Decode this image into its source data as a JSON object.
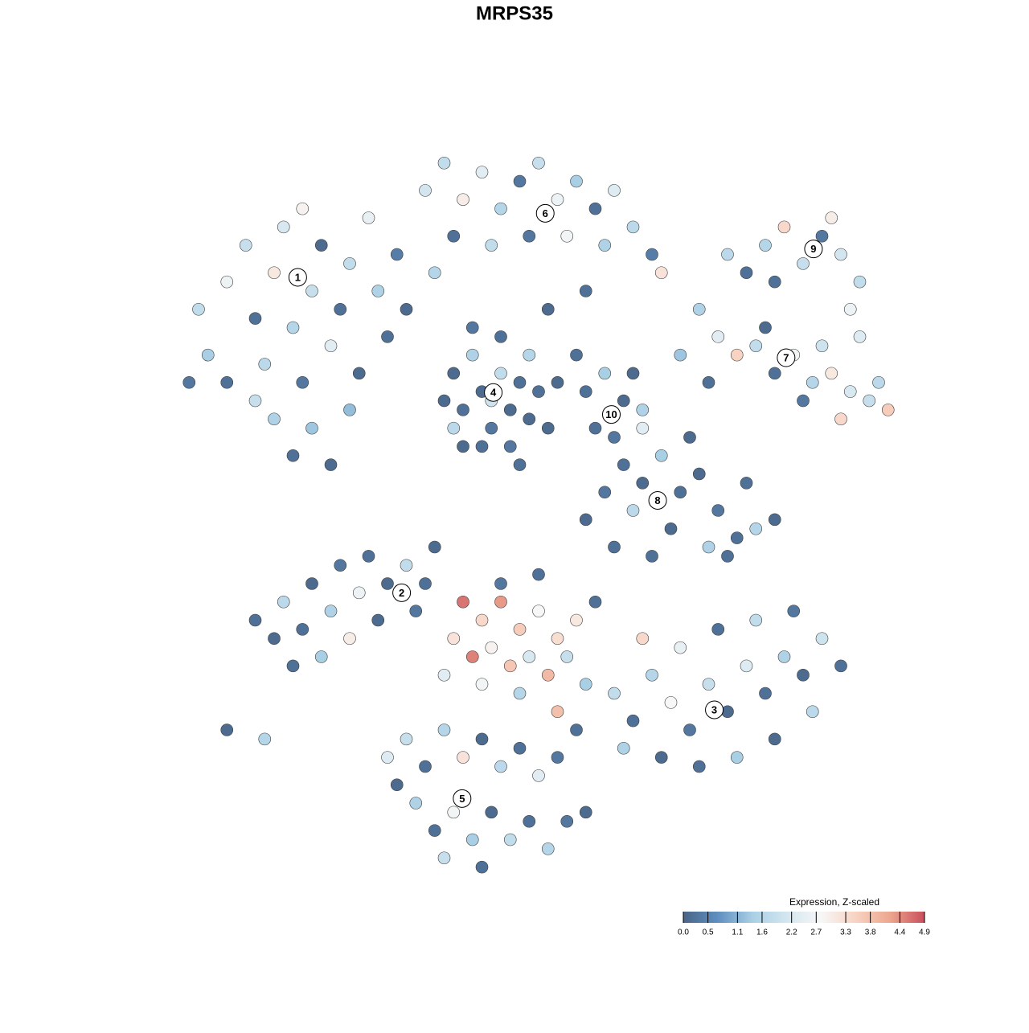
{
  "chart_data": {
    "type": "scatter",
    "title": "MRPS35",
    "xlim": [
      -40,
      40
    ],
    "ylim": [
      -40,
      40
    ],
    "x": [
      -36,
      -35,
      -33,
      -31,
      -30,
      -29,
      -28,
      -27,
      -26,
      -25,
      -24,
      -23,
      -22,
      -21,
      -20,
      -19,
      -18,
      -17,
      -16,
      -15,
      -14,
      -28,
      -26,
      -24,
      -22,
      -30,
      -33,
      -20,
      -37,
      -25,
      -12,
      -10,
      -8,
      -6,
      -4,
      -2,
      0,
      2,
      4,
      6,
      8,
      10,
      12,
      -9,
      -5,
      -1,
      3,
      7,
      13,
      5,
      1,
      -11,
      -9,
      -8,
      -7,
      -6,
      -5,
      -4,
      -3,
      -2,
      -1,
      -6,
      -8,
      -3,
      0,
      -10,
      -7,
      -4,
      -1,
      1,
      -9,
      -5,
      -2,
      2,
      5,
      7,
      9,
      6,
      8,
      10,
      4,
      11,
      22,
      24,
      26,
      28,
      30,
      32,
      34,
      33,
      31,
      20,
      25,
      34,
      17,
      19,
      21,
      23,
      25,
      27,
      29,
      31,
      33,
      35,
      37,
      32,
      28,
      24,
      15,
      18,
      30,
      36,
      9,
      11,
      13,
      15,
      17,
      19,
      21,
      23,
      25,
      20,
      18,
      14,
      10,
      12,
      16,
      22,
      11,
      7,
      5,
      8,
      -28,
      -27,
      -25,
      -24,
      -22,
      -21,
      -19,
      -18,
      -16,
      -14,
      -12,
      -11,
      -26,
      -23,
      -20,
      -17,
      -30,
      -13,
      -33,
      -29,
      -8,
      -6,
      -4,
      -2,
      0,
      2,
      -7,
      -5,
      -3,
      -1,
      1,
      3,
      -9,
      -6,
      -2,
      4,
      6,
      5,
      -10,
      -4,
      0,
      2,
      8,
      10,
      12,
      14,
      16,
      18,
      20,
      22,
      24,
      26,
      28,
      30,
      32,
      29,
      25,
      21,
      17,
      13,
      11,
      19,
      23,
      27,
      9,
      15,
      -14,
      -12,
      -10,
      -8,
      -6,
      -4,
      -2,
      0,
      2,
      -13,
      -11,
      -9,
      -7,
      -5,
      -3,
      -1,
      1,
      3,
      5,
      -6,
      -10,
      -15,
      4,
      -16
    ],
    "y": [
      22,
      17,
      25,
      29,
      21,
      16,
      26,
      31,
      20,
      14,
      24,
      29,
      18,
      22,
      27,
      15,
      32,
      24,
      19,
      28,
      22,
      10,
      6,
      9,
      5,
      12,
      14,
      11,
      14,
      33,
      35,
      38,
      34,
      37,
      33,
      36,
      38,
      34,
      36,
      33,
      35,
      31,
      28,
      30,
      29,
      30,
      30,
      29,
      26,
      24,
      22,
      26,
      15,
      11,
      17,
      13,
      9,
      15,
      11,
      14,
      10,
      7,
      7,
      7,
      13,
      12,
      20,
      19,
      17,
      9,
      9,
      12,
      5,
      14,
      13,
      15,
      12,
      9,
      8,
      15,
      17,
      11,
      26,
      29,
      31,
      27,
      30,
      28,
      25,
      22,
      32,
      28,
      25,
      19,
      22,
      19,
      17,
      18,
      15,
      17,
      14,
      15,
      13,
      12,
      11,
      10,
      12,
      20,
      17,
      14,
      18,
      14,
      5,
      3,
      6,
      2,
      4,
      0,
      -3,
      -2,
      -1,
      -5,
      -4,
      -2,
      0,
      -5,
      8,
      3,
      9,
      2,
      -1,
      -4,
      -14,
      -10,
      -13,
      -8,
      -11,
      -6,
      -9,
      -5,
      -8,
      -6,
      -8,
      -4,
      -17,
      -16,
      -14,
      -12,
      -12,
      -11,
      -24,
      -25,
      -10,
      -12,
      -10,
      -13,
      -11,
      -14,
      -16,
      -15,
      -17,
      -16,
      -18,
      -16,
      -14,
      -19,
      -20,
      -12,
      -10,
      -19,
      -18,
      -8,
      -7,
      -22,
      -20,
      -23,
      -18,
      -21,
      -24,
      -19,
      -22,
      -17,
      -20,
      -16,
      -18,
      -14,
      -17,
      -22,
      -25,
      -27,
      -28,
      -27,
      -14,
      -13,
      -12,
      -11,
      -26,
      -15,
      -25,
      -28,
      -24,
      -27,
      -25,
      -28,
      -26,
      -29,
      -27,
      -32,
      -35,
      -33,
      -36,
      -33,
      -36,
      -34,
      -37,
      -34,
      -33,
      -39,
      -38,
      -30,
      -24,
      -27
    ],
    "values": [
      1.8,
      1.4,
      2.6,
      1.9,
      0.2,
      1.7,
      3.1,
      2.2,
      1.6,
      0.3,
      1.9,
      0.1,
      2.4,
      0.2,
      1.8,
      0.1,
      2.5,
      1.5,
      0.2,
      0.4,
      0.1,
      1.5,
      0.2,
      1.3,
      0.1,
      1.9,
      0.2,
      1.2,
      0.3,
      2.9,
      2.1,
      1.8,
      3.0,
      2.4,
      1.6,
      0.3,
      1.9,
      2.6,
      1.4,
      0.2,
      2.3,
      1.7,
      0.4,
      0.2,
      1.8,
      0.3,
      2.7,
      1.5,
      3.2,
      0.2,
      0.1,
      1.6,
      0.1,
      0.2,
      1.5,
      0.1,
      0.3,
      1.8,
      0.1,
      0.2,
      0.1,
      0.2,
      0.1,
      0.3,
      0.2,
      0.1,
      0.3,
      0.2,
      1.6,
      0.1,
      1.7,
      2.0,
      0.2,
      0.1,
      0.2,
      1.4,
      0.1,
      0.2,
      0.3,
      0.1,
      0.2,
      1.5,
      0.2,
      1.6,
      3.4,
      1.9,
      0.3,
      2.1,
      1.8,
      2.6,
      3.0,
      1.7,
      0.2,
      2.3,
      1.5,
      2.4,
      3.5,
      1.8,
      0.2,
      2.7,
      1.6,
      3.1,
      2.2,
      1.9,
      3.6,
      3.4,
      0.3,
      0.1,
      1.3,
      0.2,
      2.0,
      1.7,
      0.2,
      0.1,
      1.4,
      0.2,
      0.1,
      0.3,
      0.2,
      1.6,
      0.1,
      0.2,
      1.5,
      0.1,
      1.7,
      0.2,
      0.1,
      0.2,
      2.4,
      0.3,
      0.1,
      0.2,
      0.1,
      1.7,
      0.2,
      0.1,
      1.5,
      0.3,
      2.6,
      0.2,
      0.1,
      1.8,
      0.2,
      0.1,
      0.2,
      1.4,
      3.0,
      0.1,
      0.2,
      0.3,
      0.1,
      1.6,
      4.6,
      3.4,
      4.3,
      3.6,
      2.8,
      3.3,
      4.5,
      2.9,
      3.7,
      2.2,
      3.9,
      1.9,
      3.2,
      2.7,
      1.6,
      3.1,
      0.2,
      1.4,
      2.4,
      0.3,
      0.2,
      3.8,
      1.8,
      0.2,
      1.6,
      2.8,
      0.3,
      1.9,
      0.1,
      2.3,
      0.2,
      1.5,
      0.1,
      2.0,
      0.2,
      1.7,
      0.1,
      1.4,
      0.2,
      0.1,
      3.4,
      0.2,
      1.8,
      0.3,
      1.5,
      2.5,
      1.9,
      0.2,
      1.6,
      3.2,
      0.1,
      1.7,
      0.2,
      2.4,
      0.3,
      1.5,
      0.2,
      2.7,
      1.4,
      0.1,
      1.8,
      0.2,
      1.6,
      0.3,
      0.1,
      0.2,
      1.9,
      0.1,
      0.2,
      2.3
    ],
    "cluster_labels": [
      {
        "label": "1",
        "x": -25.5,
        "y": 25.5
      },
      {
        "label": "2",
        "x": -14.5,
        "y": -9
      },
      {
        "label": "3",
        "x": 18.6,
        "y": -21.8
      },
      {
        "label": "4",
        "x": -4.8,
        "y": 12.9
      },
      {
        "label": "5",
        "x": -8.1,
        "y": -31.5
      },
      {
        "label": "6",
        "x": 0.7,
        "y": 32.5
      },
      {
        "label": "7",
        "x": 26.2,
        "y": 16.7
      },
      {
        "label": "8",
        "x": 12.6,
        "y": 1.1
      },
      {
        "label": "9",
        "x": 29.1,
        "y": 28.6
      },
      {
        "label": "10",
        "x": 7.7,
        "y": 10.5
      }
    ],
    "colorbar": {
      "title": "Expression, Z-scaled",
      "lim": [
        0,
        4.9
      ],
      "ticks": [
        {
          "value": 0,
          "label": "0.0"
        },
        0.5,
        1.1,
        1.6,
        2.2,
        2.7,
        3.3,
        3.8,
        4.4,
        4.9
      ],
      "colors": [
        "#4a6587",
        "#5f8fc0",
        "#a9cfe5",
        "#d3e6f0",
        "#f7f7f7",
        "#f8d3c2",
        "#eda68f",
        "#c94f5b"
      ]
    }
  }
}
